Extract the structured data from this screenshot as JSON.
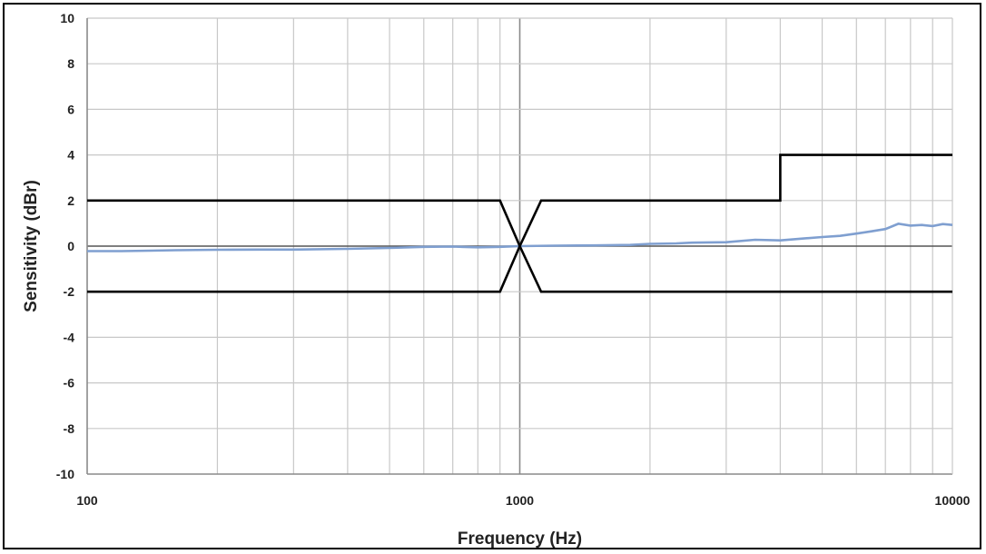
{
  "chart_data": {
    "type": "line",
    "title": "",
    "xlabel": "Frequency (Hz)",
    "ylabel": "Sensitivity (dBr)",
    "x_scale": "log",
    "xlim": [
      100,
      10000
    ],
    "ylim": [
      -10,
      10
    ],
    "x_ticks": [
      100,
      1000,
      10000
    ],
    "x_tick_labels": [
      "100",
      "1000",
      "10000"
    ],
    "y_ticks": [
      -10,
      -8,
      -6,
      -4,
      -2,
      0,
      2,
      4,
      6,
      8,
      10
    ],
    "y_tick_labels": [
      "-10",
      "-8",
      "-6",
      "-4",
      "-2",
      "0",
      "2",
      "4",
      "6",
      "8",
      "10"
    ],
    "grid": true,
    "legend": "none",
    "colors": {
      "response": "#7f9fd0",
      "limits": "#000000",
      "grid": "#c8c8c8",
      "zero_line": "#555555"
    },
    "series": [
      {
        "values": [
          {
            "x": 100,
            "y": -0.22
          },
          {
            "x": 120,
            "y": -0.22
          },
          {
            "x": 140,
            "y": -0.2
          },
          {
            "x": 160,
            "y": -0.18
          },
          {
            "x": 200,
            "y": -0.16
          },
          {
            "x": 250,
            "y": -0.15
          },
          {
            "x": 300,
            "y": -0.15
          },
          {
            "x": 400,
            "y": -0.12
          },
          {
            "x": 500,
            "y": -0.08
          },
          {
            "x": 600,
            "y": -0.03
          },
          {
            "x": 700,
            "y": -0.02
          },
          {
            "x": 800,
            "y": -0.05
          },
          {
            "x": 900,
            "y": -0.03
          },
          {
            "x": 1000,
            "y": 0
          },
          {
            "x": 1200,
            "y": 0.02
          },
          {
            "x": 1500,
            "y": 0.03
          },
          {
            "x": 1800,
            "y": 0.05
          },
          {
            "x": 2000,
            "y": 0.1
          },
          {
            "x": 2300,
            "y": 0.12
          },
          {
            "x": 2500,
            "y": 0.15
          },
          {
            "x": 3000,
            "y": 0.17
          },
          {
            "x": 3500,
            "y": 0.28
          },
          {
            "x": 4000,
            "y": 0.25
          },
          {
            "x": 4500,
            "y": 0.33
          },
          {
            "x": 5000,
            "y": 0.4
          },
          {
            "x": 5500,
            "y": 0.45
          },
          {
            "x": 6000,
            "y": 0.55
          },
          {
            "x": 6500,
            "y": 0.65
          },
          {
            "x": 7000,
            "y": 0.75
          },
          {
            "x": 7500,
            "y": 0.98
          },
          {
            "x": 8000,
            "y": 0.9
          },
          {
            "x": 8500,
            "y": 0.93
          },
          {
            "x": 9000,
            "y": 0.88
          },
          {
            "x": 9500,
            "y": 0.97
          },
          {
            "x": 10000,
            "y": 0.93
          }
        ]
      },
      {
        "values": [
          {
            "x": 100,
            "y": 2
          },
          {
            "x": 900,
            "y": 2
          },
          {
            "x": 1000,
            "y": 0
          },
          {
            "x": 1120,
            "y": 2
          },
          {
            "x": 4000,
            "y": 2
          },
          {
            "x": 4000,
            "y": 4
          },
          {
            "x": 10000,
            "y": 4
          }
        ]
      },
      {
        "values": [
          {
            "x": 100,
            "y": -2
          },
          {
            "x": 900,
            "y": -2
          },
          {
            "x": 1000,
            "y": 0
          },
          {
            "x": 1120,
            "y": -2
          },
          {
            "x": 10000,
            "y": -2
          }
        ]
      }
    ]
  }
}
